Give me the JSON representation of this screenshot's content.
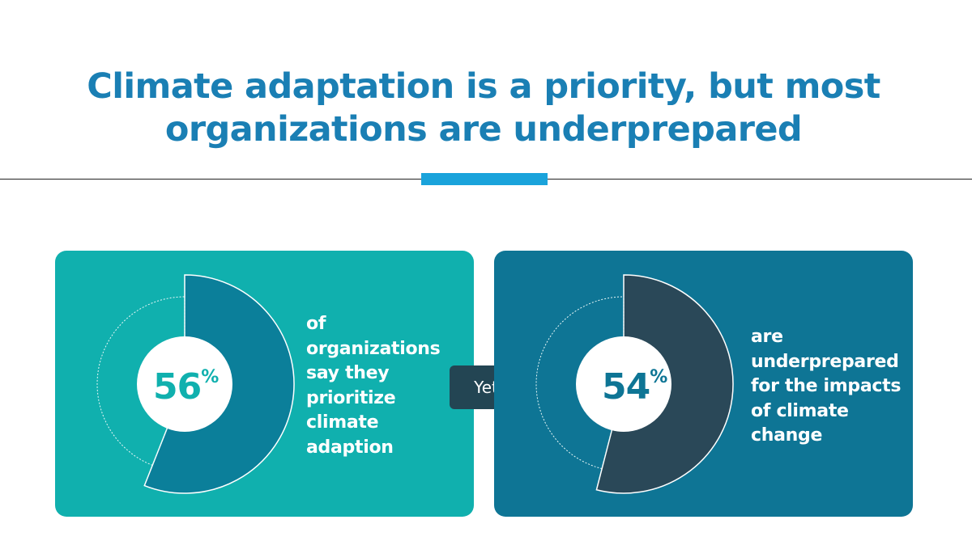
{
  "header": {
    "title_line_1": "Climate adaptation is a priority, but most",
    "title_line_2": "organizations are underprepared"
  },
  "cards": {
    "left": {
      "value": "56",
      "unit": "%",
      "percent": 56,
      "text_lines": [
        "of",
        "organizations",
        "say they",
        "prioritize",
        "climate",
        "adaption"
      ],
      "bg_color": "#10b0ae",
      "fill_color": "#0b7f9a",
      "value_color": "#10b0ae"
    },
    "right": {
      "value": "54",
      "unit": "%",
      "percent": 54,
      "text_lines": [
        "are",
        "underprepared",
        "for the impacts",
        "of climate",
        "change"
      ],
      "bg_color": "#0e7595",
      "fill_color": "#2a4858",
      "value_color": "#0e7595"
    }
  },
  "connector": {
    "label": "Yet",
    "color": "#234553"
  },
  "colors": {
    "title": "#1a7fb4",
    "accent_bar": "#1aa3db"
  },
  "chart_data": [
    {
      "type": "pie",
      "title": "",
      "values": [
        56,
        44
      ],
      "labels": [
        "56%",
        ""
      ],
      "text": "of organizations say they prioritize climate adaption"
    },
    {
      "type": "pie",
      "title": "",
      "values": [
        54,
        46
      ],
      "labels": [
        "54%",
        ""
      ],
      "text": "are underprepared for the impacts of climate change"
    }
  ]
}
